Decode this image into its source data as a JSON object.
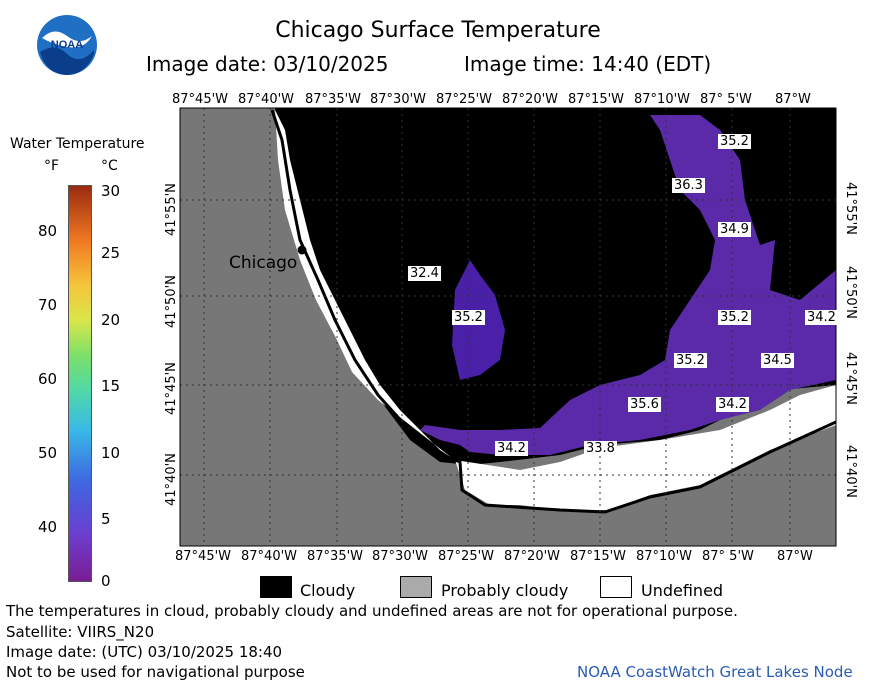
{
  "header": {
    "title": "Chicago Surface Temperature",
    "image_date": "Image date: 03/10/2025",
    "image_time": "Image time: 14:40 (EDT)"
  },
  "logo": {
    "text": "NOAA",
    "icon": "noaa-logo-icon"
  },
  "colorbar": {
    "title": "Water Temperature",
    "unit_f": "°F",
    "unit_c": "°C",
    "f_ticks": [
      "80",
      "70",
      "60",
      "50",
      "40"
    ],
    "c_ticks": [
      "30",
      "25",
      "20",
      "15",
      "10",
      "5",
      "0"
    ]
  },
  "map": {
    "lon_labels": [
      "87°45'W",
      "87°40'W",
      "87°35'W",
      "87°30'W",
      "87°25'W",
      "87°20'W",
      "87°15'W",
      "87°10'W",
      "87° 5'W",
      "87°W"
    ],
    "lat_labels": [
      "41°55'N",
      "41°50'N",
      "41°45'N",
      "41°40'N"
    ],
    "city": "Chicago",
    "temp_labels": [
      "35.2",
      "36.3",
      "34.9",
      "32.4",
      "35.2",
      "35.2",
      "34.2",
      "35.2",
      "34.5",
      "35.6",
      "34.2",
      "34.2",
      "33.8"
    ]
  },
  "legend": {
    "cloudy": "Cloudy",
    "probably_cloudy": "Probably cloudy",
    "undefined": "Undefined"
  },
  "footer": {
    "line1": "The temperatures in cloud, probably cloudy and undefined areas are not for operational purpose.",
    "line2": "Satellite: VIIRS_N20",
    "line3": "Image date: (UTC) 03/10/2025  18:40",
    "line4": "Not to be used for navigational purpose",
    "credit": "NOAA CoastWatch Great Lakes Node"
  },
  "colors": {
    "land": "#777777",
    "cloud": "#000000",
    "water": "#5a2aa8",
    "undefined": "#ffffff",
    "credit": "#2a5db0"
  }
}
